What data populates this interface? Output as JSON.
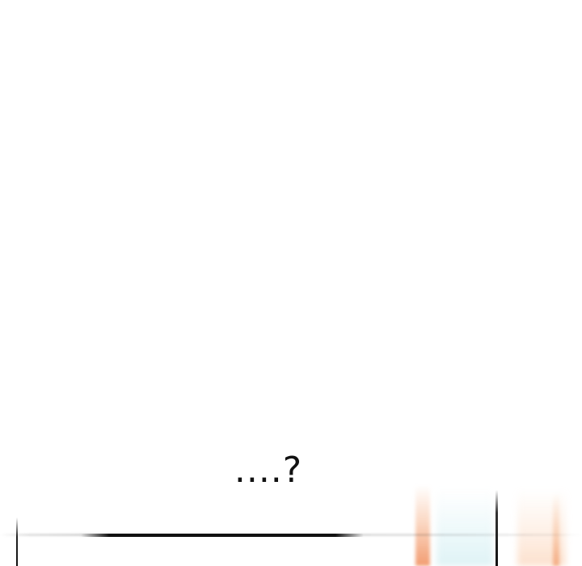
{
  "dialogue": {
    "text": "....?"
  }
}
